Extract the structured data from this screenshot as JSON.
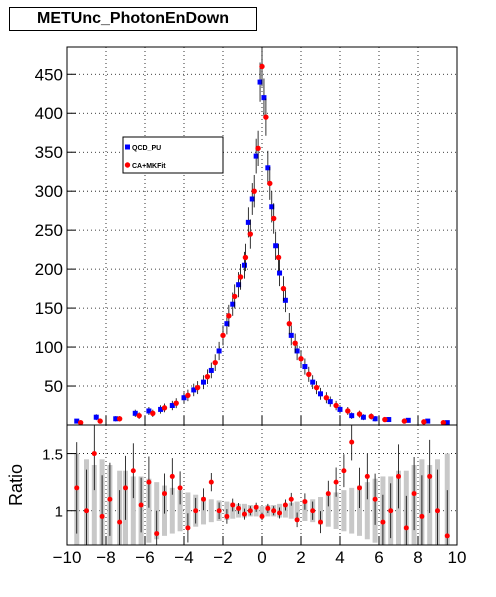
{
  "title": "METUnc_PhotonEnDown",
  "colors": {
    "series1": "#0000ff",
    "series2": "#ff0000",
    "ratio_band": "#c8c8c8",
    "frame": "#000000"
  },
  "chart_data": [
    {
      "type": "scatter",
      "panel": "main",
      "title": "METUnc_PhotonEnDown",
      "xlim": [
        -10,
        10
      ],
      "ylim": [
        0,
        485
      ],
      "x_ticks": [
        -10,
        -8,
        -6,
        -4,
        -2,
        0,
        2,
        4,
        6,
        8,
        10
      ],
      "y_ticks": [
        50,
        100,
        150,
        200,
        250,
        300,
        350,
        400,
        450
      ],
      "grid": true,
      "legend_placement": "top-left",
      "series": [
        {
          "name": "QCD_PU",
          "color": "#0000ff",
          "x": [
            -9.5,
            -8.5,
            -7.5,
            -6.5,
            -5.8,
            -5.2,
            -4.6,
            -4.0,
            -3.5,
            -3.0,
            -2.6,
            -2.2,
            -1.8,
            -1.5,
            -1.2,
            -0.9,
            -0.7,
            -0.5,
            -0.3,
            -0.1,
            0.1,
            0.3,
            0.5,
            0.7,
            0.9,
            1.2,
            1.5,
            1.8,
            2.2,
            2.6,
            3.0,
            3.5,
            4.0,
            4.6,
            5.2,
            5.8,
            6.5,
            7.5,
            8.5,
            9.5
          ],
          "y": [
            5,
            10,
            8,
            15,
            18,
            20,
            25,
            35,
            45,
            55,
            70,
            95,
            130,
            155,
            180,
            205,
            260,
            290,
            345,
            440,
            420,
            330,
            280,
            230,
            195,
            160,
            115,
            95,
            75,
            55,
            40,
            30,
            20,
            12,
            10,
            8,
            7,
            6,
            5,
            3
          ]
        },
        {
          "name": "CA+MKFit",
          "color": "#ff0000",
          "x": [
            -9.3,
            -8.3,
            -7.3,
            -6.3,
            -5.6,
            -5.0,
            -4.4,
            -3.8,
            -3.3,
            -2.8,
            -2.4,
            -2.0,
            -1.7,
            -1.4,
            -1.1,
            -0.85,
            -0.6,
            -0.4,
            -0.2,
            0.0,
            0.2,
            0.4,
            0.6,
            0.85,
            1.1,
            1.4,
            1.7,
            2.0,
            2.4,
            2.8,
            3.3,
            3.8,
            4.4,
            5.0,
            5.6,
            6.3,
            7.3,
            8.3,
            9.3
          ],
          "y": [
            3,
            5,
            8,
            12,
            15,
            22,
            28,
            38,
            48,
            62,
            80,
            115,
            140,
            165,
            190,
            215,
            245,
            300,
            355,
            460,
            395,
            310,
            265,
            215,
            175,
            130,
            105,
            85,
            65,
            48,
            35,
            25,
            18,
            14,
            11,
            7,
            5,
            4,
            3
          ]
        }
      ]
    },
    {
      "type": "scatter",
      "panel": "ratio",
      "ylabel": "Ratio",
      "xlim": [
        -10,
        10
      ],
      "ylim": [
        0.7,
        1.75
      ],
      "y_ticks": [
        1,
        1.5
      ],
      "grid": true,
      "series": [
        {
          "name": "",
          "color": "#ff0000",
          "x": [
            -9.5,
            -9.0,
            -8.6,
            -8.2,
            -7.8,
            -7.3,
            -7.0,
            -6.6,
            -6.2,
            -5.8,
            -5.4,
            -5.0,
            -4.6,
            -4.2,
            -3.8,
            -3.4,
            -3.0,
            -2.6,
            -2.2,
            -1.8,
            -1.5,
            -1.2,
            -0.9,
            -0.6,
            -0.3,
            0.0,
            0.3,
            0.6,
            0.9,
            1.2,
            1.5,
            1.8,
            2.2,
            2.6,
            3.0,
            3.4,
            3.8,
            4.2,
            4.6,
            5.0,
            5.4,
            5.8,
            6.2,
            6.6,
            7.0,
            7.4,
            7.8,
            8.2,
            8.6,
            9.0,
            9.5
          ],
          "y": [
            1.2,
            1.0,
            1.5,
            0.95,
            1.1,
            0.9,
            1.2,
            1.35,
            1.05,
            1.25,
            0.8,
            1.15,
            1.3,
            1.2,
            0.85,
            1.0,
            1.1,
            1.25,
            1.0,
            0.95,
            1.05,
            1.02,
            0.97,
            1.0,
            1.03,
            0.95,
            1.02,
            1.0,
            0.98,
            1.05,
            1.1,
            0.92,
            1.08,
            1.0,
            0.9,
            1.15,
            1.25,
            1.35,
            1.6,
            1.2,
            1.3,
            1.1,
            0.9,
            1.0,
            1.3,
            0.85,
            1.15,
            0.95,
            1.3,
            1.0,
            0.78
          ],
          "err": [
            0.5,
            0.45,
            0.4,
            0.45,
            0.4,
            0.35,
            0.35,
            0.3,
            0.3,
            0.28,
            0.25,
            0.22,
            0.2,
            0.18,
            0.16,
            0.14,
            0.12,
            0.1,
            0.09,
            0.08,
            0.07,
            0.06,
            0.06,
            0.05,
            0.05,
            0.04,
            0.05,
            0.05,
            0.06,
            0.06,
            0.07,
            0.08,
            0.09,
            0.1,
            0.12,
            0.14,
            0.16,
            0.18,
            0.2,
            0.22,
            0.25,
            0.28,
            0.3,
            0.3,
            0.35,
            0.35,
            0.4,
            0.45,
            0.4,
            0.45,
            0.5
          ]
        }
      ]
    }
  ]
}
